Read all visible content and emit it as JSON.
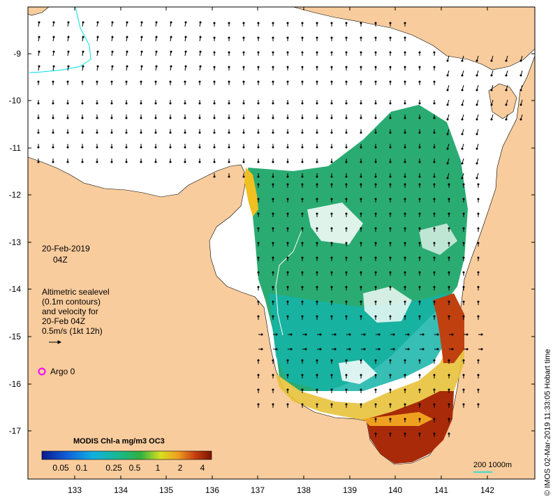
{
  "map": {
    "date": "20-Feb-2019",
    "time": "04Z",
    "lon_ticks": [
      "133",
      "134",
      "135",
      "136",
      "137",
      "138",
      "139",
      "140",
      "141",
      "142"
    ],
    "lat_ticks": [
      "-9",
      "-10",
      "-11",
      "-12",
      "-13",
      "-14",
      "-15",
      "-16",
      "-17"
    ],
    "annotation_lines": [
      "Altimetric sealevel",
      "(0.1m contours)",
      "and velocity for",
      "20-Feb 04Z",
      "0.5m/s (1kt 12h)"
    ],
    "argo_label": "Argo 0",
    "colorbar": {
      "title": "MODIS Chl-a mg/m3 OC3",
      "ticks": [
        "0.05",
        "0.1",
        "0.25",
        "0.5",
        "1",
        "2",
        "4"
      ]
    },
    "scale_label": "200  1000m",
    "credit": "© IMOS 02-Mar-2019 11:33:05 Hobart time",
    "colors": {
      "land": "#f9cc9d",
      "ocean": "#ffffff",
      "chl_low": "#1a9e6a",
      "chl_high": "#7a1400",
      "argo_marker": "#ff00ff",
      "bathymetry": "#00e0e0"
    }
  }
}
